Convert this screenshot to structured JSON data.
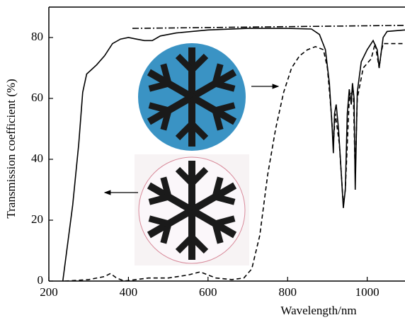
{
  "chart_data": {
    "type": "line",
    "xlabel": "Wavelength/nm",
    "ylabel": "Transmission coefficient (%)",
    "xlim": [
      200,
      1095
    ],
    "xticks": [
      200,
      400,
      600,
      800,
      1000
    ],
    "ylim": [
      0,
      90
    ],
    "yticks": [
      0,
      20,
      40,
      60,
      80
    ],
    "series": [
      {
        "color": "#000000",
        "style": "solid",
        "x": [
          235,
          245,
          260,
          275,
          285,
          295,
          320,
          340,
          360,
          380,
          400,
          420,
          440,
          460,
          480,
          520,
          600,
          700,
          800,
          860,
          880,
          895,
          905,
          912,
          915,
          918,
          922,
          928,
          935,
          940,
          945,
          950,
          955,
          960,
          963,
          967,
          970,
          975,
          985,
          1000,
          1015,
          1025,
          1030,
          1035,
          1040,
          1050,
          1095
        ],
        "values": [
          0,
          10,
          25,
          45,
          62,
          68,
          71,
          74,
          78,
          79.5,
          80,
          79.5,
          79,
          79,
          80.5,
          81.5,
          82.5,
          83,
          83,
          82.8,
          81,
          76,
          65,
          50,
          42,
          55,
          58,
          50,
          35,
          24,
          30,
          55,
          63,
          58,
          65,
          60,
          30,
          62,
          72,
          76,
          79,
          76,
          70,
          75,
          80,
          82,
          82.5
        ]
      },
      {
        "color": "#000000",
        "style": "dashed",
        "x": [
          240,
          300,
          340,
          355,
          370,
          390,
          450,
          500,
          550,
          580,
          620,
          660,
          690,
          710,
          730,
          750,
          770,
          790,
          810,
          830,
          850,
          870,
          890,
          900,
          910,
          915,
          920,
          930,
          940,
          945,
          955,
          965,
          970,
          975,
          990,
          1010,
          1020,
          1030,
          1035,
          1040,
          1095
        ],
        "values": [
          0,
          0.5,
          1.5,
          2.5,
          1,
          0,
          1,
          1,
          2,
          3,
          1,
          0.5,
          1,
          4,
          15,
          35,
          50,
          62,
          70,
          74,
          76,
          77,
          76,
          70,
          55,
          45,
          55,
          45,
          25,
          30,
          60,
          63,
          35,
          60,
          70,
          73,
          78,
          70,
          75,
          78,
          78
        ]
      },
      {
        "color": "#000000",
        "style": "dashdot",
        "x": [
          410,
          1095
        ],
        "values": [
          83,
          84
        ]
      }
    ]
  }
}
